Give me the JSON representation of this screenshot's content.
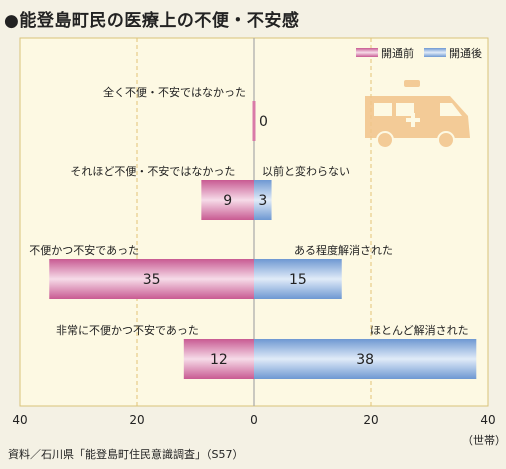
{
  "title": "●能登島町民の医療上の不便・不安感",
  "source": "資料／石川県「能登島町住民意識調査」（S57）",
  "unit": "（世帯）",
  "colors": {
    "before": "#d97aa8",
    "after": "#84ace0",
    "plot_bg": "#fdf9e3",
    "grid": "#e2c477",
    "icon": "#f2c48a"
  },
  "chart_data": {
    "type": "bar",
    "orientation": "horizontal-diverging",
    "legend": {
      "position": "top-right",
      "entries": [
        "開通前",
        "開通後"
      ]
    },
    "series": [
      {
        "name": "開通前",
        "direction": "left"
      },
      {
        "name": "開通後",
        "direction": "right"
      }
    ],
    "xlim": [
      -40,
      40
    ],
    "xticks": [
      40,
      20,
      0,
      20,
      40
    ],
    "grid": true,
    "rows": [
      {
        "before_label": "全く不便・不安ではなかった",
        "after_label": "",
        "before": 0,
        "after": 0,
        "value_label": "0"
      },
      {
        "before_label": "それほど不便・不安ではなかった",
        "after_label": "以前と変わらない",
        "before": 9,
        "after": 3
      },
      {
        "before_label": "不便かつ不安であった",
        "after_label": "ある程度解消された",
        "before": 35,
        "after": 15
      },
      {
        "before_label": "非常に不便かつ不安であった",
        "after_label": "ほとんど解消された",
        "before": 12,
        "after": 38
      }
    ]
  }
}
